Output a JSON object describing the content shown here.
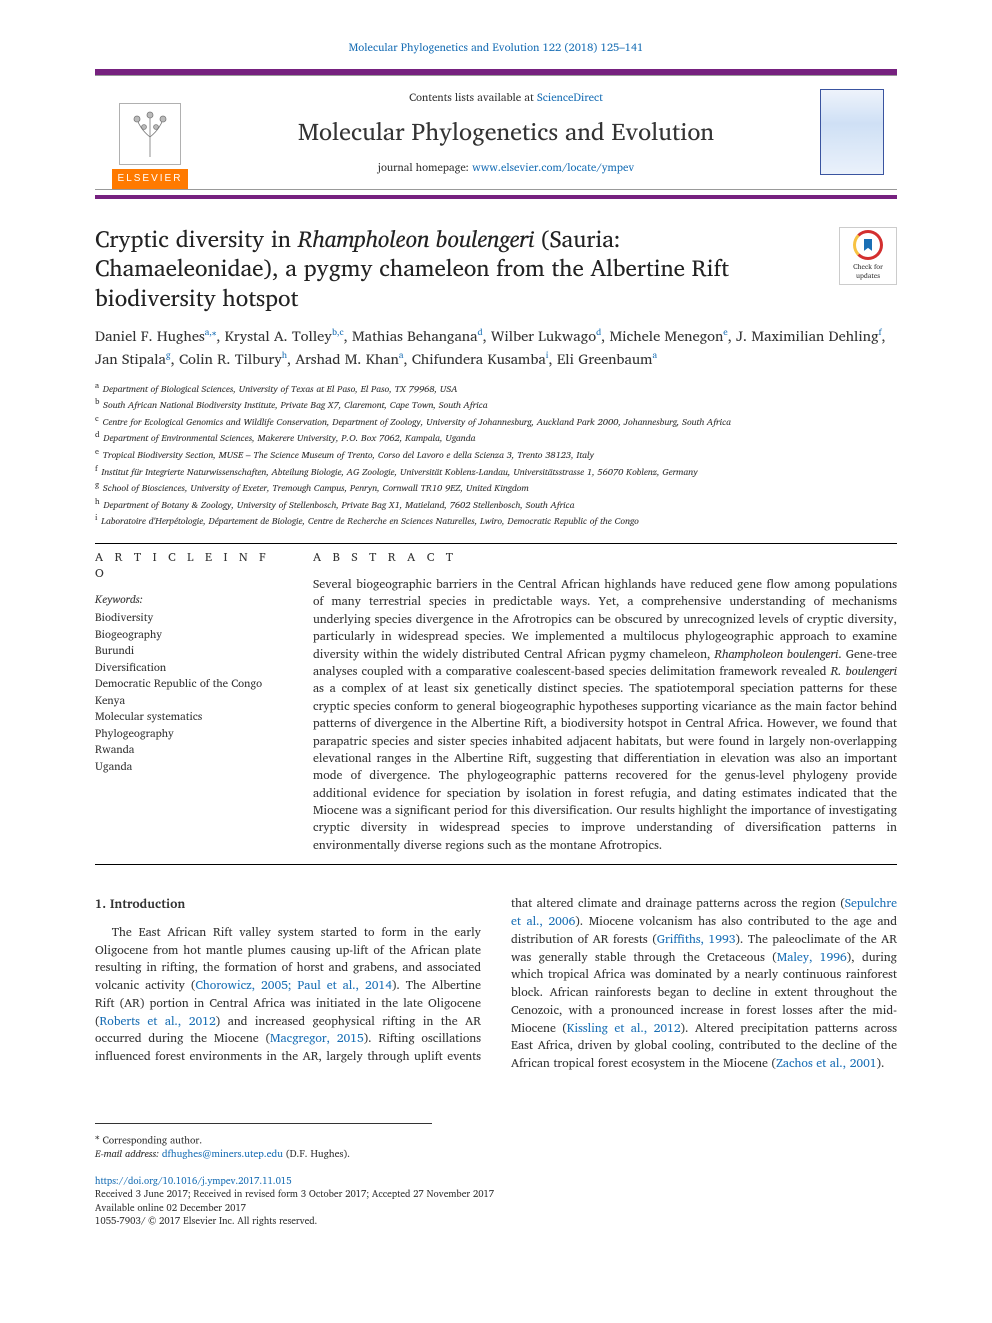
{
  "topLink": {
    "journal": "Molecular Phylogenetics and Evolution 122 (2018) 125–141"
  },
  "masthead": {
    "contentsPrefix": "Contents lists available at ",
    "contentsLink": "ScienceDirect",
    "journalTitle": "Molecular Phylogenetics and Evolution",
    "homepagePrefix": "journal homepage: ",
    "homepageUrl": "www.elsevier.com/locate/ympev",
    "elsevier": "ELSEVIER"
  },
  "checkUpdates": {
    "line1": "Check for",
    "line2": "updates"
  },
  "title": {
    "pre": "Cryptic diversity in ",
    "italic": "Rhampholeon boulengeri",
    "post": " (Sauria: Chamaeleonidae), a pygmy chameleon from the Albertine Rift biodiversity hotspot"
  },
  "authors": [
    {
      "name": "Daniel F. Hughes",
      "sup": "a,",
      "corr": true
    },
    {
      "name": "Krystal A. Tolley",
      "sup": "b,c"
    },
    {
      "name": "Mathias Behangana",
      "sup": "d"
    },
    {
      "name": "Wilber Lukwago",
      "sup": "d"
    },
    {
      "name": "Michele Menegon",
      "sup": "e"
    },
    {
      "name": "J. Maximilian Dehling",
      "sup": "f"
    },
    {
      "name": "Jan Stipala",
      "sup": "g"
    },
    {
      "name": "Colin R. Tilbury",
      "sup": "h"
    },
    {
      "name": "Arshad M. Khan",
      "sup": "a"
    },
    {
      "name": "Chifundera Kusamba",
      "sup": "i"
    },
    {
      "name": "Eli Greenbaum",
      "sup": "a"
    }
  ],
  "affils": {
    "a": "Department of Biological Sciences, University of Texas at El Paso, El Paso, TX 79968, USA",
    "b": "South African National Biodiversity Institute, Private Bag X7, Claremont, Cape Town, South Africa",
    "c": "Centre for Ecological Genomics and Wildlife Conservation, Department of Zoology, University of Johannesburg, Auckland Park 2000, Johannesburg, South Africa",
    "d": "Department of Environmental Sciences, Makerere University, P.O. Box 7062, Kampala, Uganda",
    "e": "Tropical Biodiversity Section, MUSE – The Science Museum of Trento, Corso del Lavoro e della Scienza 3, Trento 38123, Italy",
    "f": "Institut für Integrierte Naturwissenschaften, Abteilung Biologie, AG Zoologie, Universität Koblenz-Landau, Universitätsstrasse 1, 56070 Koblenz, Germany",
    "g": "School of Biosciences, University of Exeter, Tremough Campus, Penryn, Cornwall TR10 9EZ, United Kingdom",
    "h": "Department of Botany & Zoology, University of Stellenbosch, Private Bag X1, Matieland, 7602 Stellenbosch, South Africa",
    "i": "Laboratoire d'Herpétologie, Département de Biologie, Centre de Recherche en Sciences Naturelles, Lwiro, Democratic Republic of the Congo"
  },
  "info": {
    "heading": "A R T I C L E   I N F O",
    "kwLabel": "Keywords:",
    "keywords": [
      "Biodiversity",
      "Biogeography",
      "Burundi",
      "Diversification",
      "Democratic Republic of the Congo",
      "Kenya",
      "Molecular systematics",
      "Phylogeography",
      "Rwanda",
      "Uganda"
    ]
  },
  "abstract": {
    "heading": "A B S T R A C T",
    "text_a": "Several biogeographic barriers in the Central African highlands have reduced gene flow among populations of many terrestrial species in predictable ways. Yet, a comprehensive understanding of mechanisms underlying species divergence in the Afrotropics can be obscured by unrecognized levels of cryptic diversity, particularly in widespread species. We implemented a multilocus phylogeographic approach to examine diversity within the widely distributed Central African pygmy chameleon, ",
    "text_it1": "Rhampholeon boulengeri",
    "text_b": ". Gene-tree analyses coupled with a comparative coalescent-based species delimitation framework revealed ",
    "text_it2": "R. boulengeri",
    "text_c": " as a complex of at least six genetically distinct species. The spatiotemporal speciation patterns for these cryptic species conform to general biogeographic hypotheses supporting vicariance as the main factor behind patterns of divergence in the Albertine Rift, a biodiversity hotspot in Central Africa. However, we found that parapatric species and sister species inhabited adjacent habitats, but were found in largely non-overlapping elevational ranges in the Albertine Rift, suggesting that differentiation in elevation was also an important mode of divergence. The phylogeographic patterns recovered for the genus-level phylogeny provide additional evidence for speciation by isolation in forest refugia, and dating estimates indicated that the Miocene was a significant period for this diversification. Our results highlight the importance of investigating cryptic diversity in widespread species to improve understanding of diversification patterns in environmentally diverse regions such as the montane Afrotropics."
  },
  "body": {
    "h1": "1. Introduction",
    "p1a": "The East African Rift valley system started to form in the early Oligocene from hot mantle plumes causing up-lift of the African plate resulting in rifting, the formation of horst and grabens, and associated volcanic activity (",
    "p1l1": "Chorowicz, 2005; Paul et al., 2014",
    "p1b": "). The Albertine Rift (AR) portion in Central Africa was initiated in the late Oligocene (",
    "p1l2": "Roberts et al., 2012",
    "p1c": ") and increased geophysical rifting in the AR occurred during the Miocene (",
    "p1l3": "Macgregor, 2015",
    "p1d": "). Rifting oscillations influenced forest environments in the AR, largely through uplift events ",
    "p2a": "that altered climate and drainage patterns across the region (",
    "p2l1": "Sepulchre et al., 2006",
    "p2b": "). Miocene volcanism has also contributed to the age and distribution of AR forests (",
    "p2l2": "Griffiths, 1993",
    "p2c": "). The paleoclimate of the AR was generally stable through the Cretaceous (",
    "p2l3": "Maley, 1996",
    "p2d": "), during which tropical Africa was dominated by a nearly continuous rainforest block. African rainforests began to decline in extent throughout the Cenozoic, with a pronounced increase in forest losses after the mid-Miocene (",
    "p2l4": "Kissling et al., 2012",
    "p2e": "). Altered precipitation patterns across East Africa, driven by global cooling, contributed to the decline of the African tropical forest ecosystem in the Miocene (",
    "p2l5": "Zachos et al., 2001",
    "p2f": ")."
  },
  "footnotes": {
    "corr": "Corresponding author.",
    "emailLabel": "E-mail address: ",
    "email": "dfhughes@miners.utep.edu",
    "emailName": " (D.F. Hughes)."
  },
  "pubmeta": {
    "doi": "https://doi.org/10.1016/j.ympev.2017.11.015",
    "received": "Received 3 June 2017; Received in revised form 3 October 2017; Accepted 27 November 2017",
    "online": "Available online 02 December 2017",
    "copyright": "1055-7903/ © 2017 Elsevier Inc. All rights reserved."
  },
  "colors": {
    "link": "#1a6fb5",
    "accent": "#76217f",
    "elsevierOrange": "#ff7a00"
  }
}
